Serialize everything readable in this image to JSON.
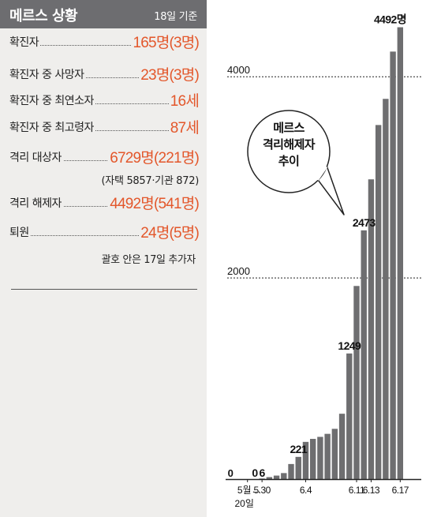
{
  "panel": {
    "title": "메르스 상황",
    "date_note": "18일 기준",
    "rows": [
      {
        "label": "확진자",
        "value": "165명(3명)"
      },
      {
        "label": "확진자 중 사망자",
        "value": "23명(3명)"
      },
      {
        "label": "확진자 중 최연소자",
        "value": "16세"
      },
      {
        "label": "확진자 중 최고령자",
        "value": "87세"
      },
      {
        "label": "격리 대상자",
        "value": "6729명(221명)"
      },
      {
        "label": "격리 해제자",
        "value": "4492명(541명)"
      },
      {
        "label": "퇴원",
        "value": "24명(5명)"
      }
    ],
    "isolation_breakdown": "(자택 5857·기관 872)",
    "footnote": "괄호 안은 17일 추가자"
  },
  "callout": {
    "lines": [
      "메르스",
      "격리해제자",
      "추이"
    ]
  },
  "colors": {
    "header_bg": "#6d6d70",
    "panel_bg": "#efeeec",
    "accent": "#e3572b",
    "bar": "#6e6e70"
  },
  "chart_data": {
    "type": "bar",
    "title": "메르스 격리해제자 추이",
    "unit": "명",
    "categories": [
      "5월 20일",
      "",
      "5.30",
      "",
      "",
      "",
      "",
      "",
      "6.4",
      "",
      "",
      "",
      "",
      "",
      "",
      "6.11",
      "",
      "6.13",
      "",
      "",
      "",
      "6.17"
    ],
    "values": [
      0,
      0,
      6,
      20,
      35,
      60,
      150,
      221,
      370,
      400,
      420,
      450,
      500,
      650,
      1249,
      1920,
      2473,
      2980,
      3520,
      3780,
      4250,
      4492
    ],
    "value_labels": [
      {
        "index": 0,
        "text": "0"
      },
      {
        "index": 1,
        "text": "0"
      },
      {
        "index": 2,
        "text": "6"
      },
      {
        "index": 7,
        "text": "221"
      },
      {
        "index": 14,
        "text": "1249"
      },
      {
        "index": 16,
        "text": "2473"
      },
      {
        "index": 21,
        "text": "4492명"
      }
    ],
    "reference_lines": [
      2000,
      4000
    ],
    "ylim": [
      0,
      4700
    ],
    "xlabel": "",
    "ylabel": "",
    "grid": false,
    "axis_gap_marker": "…"
  }
}
